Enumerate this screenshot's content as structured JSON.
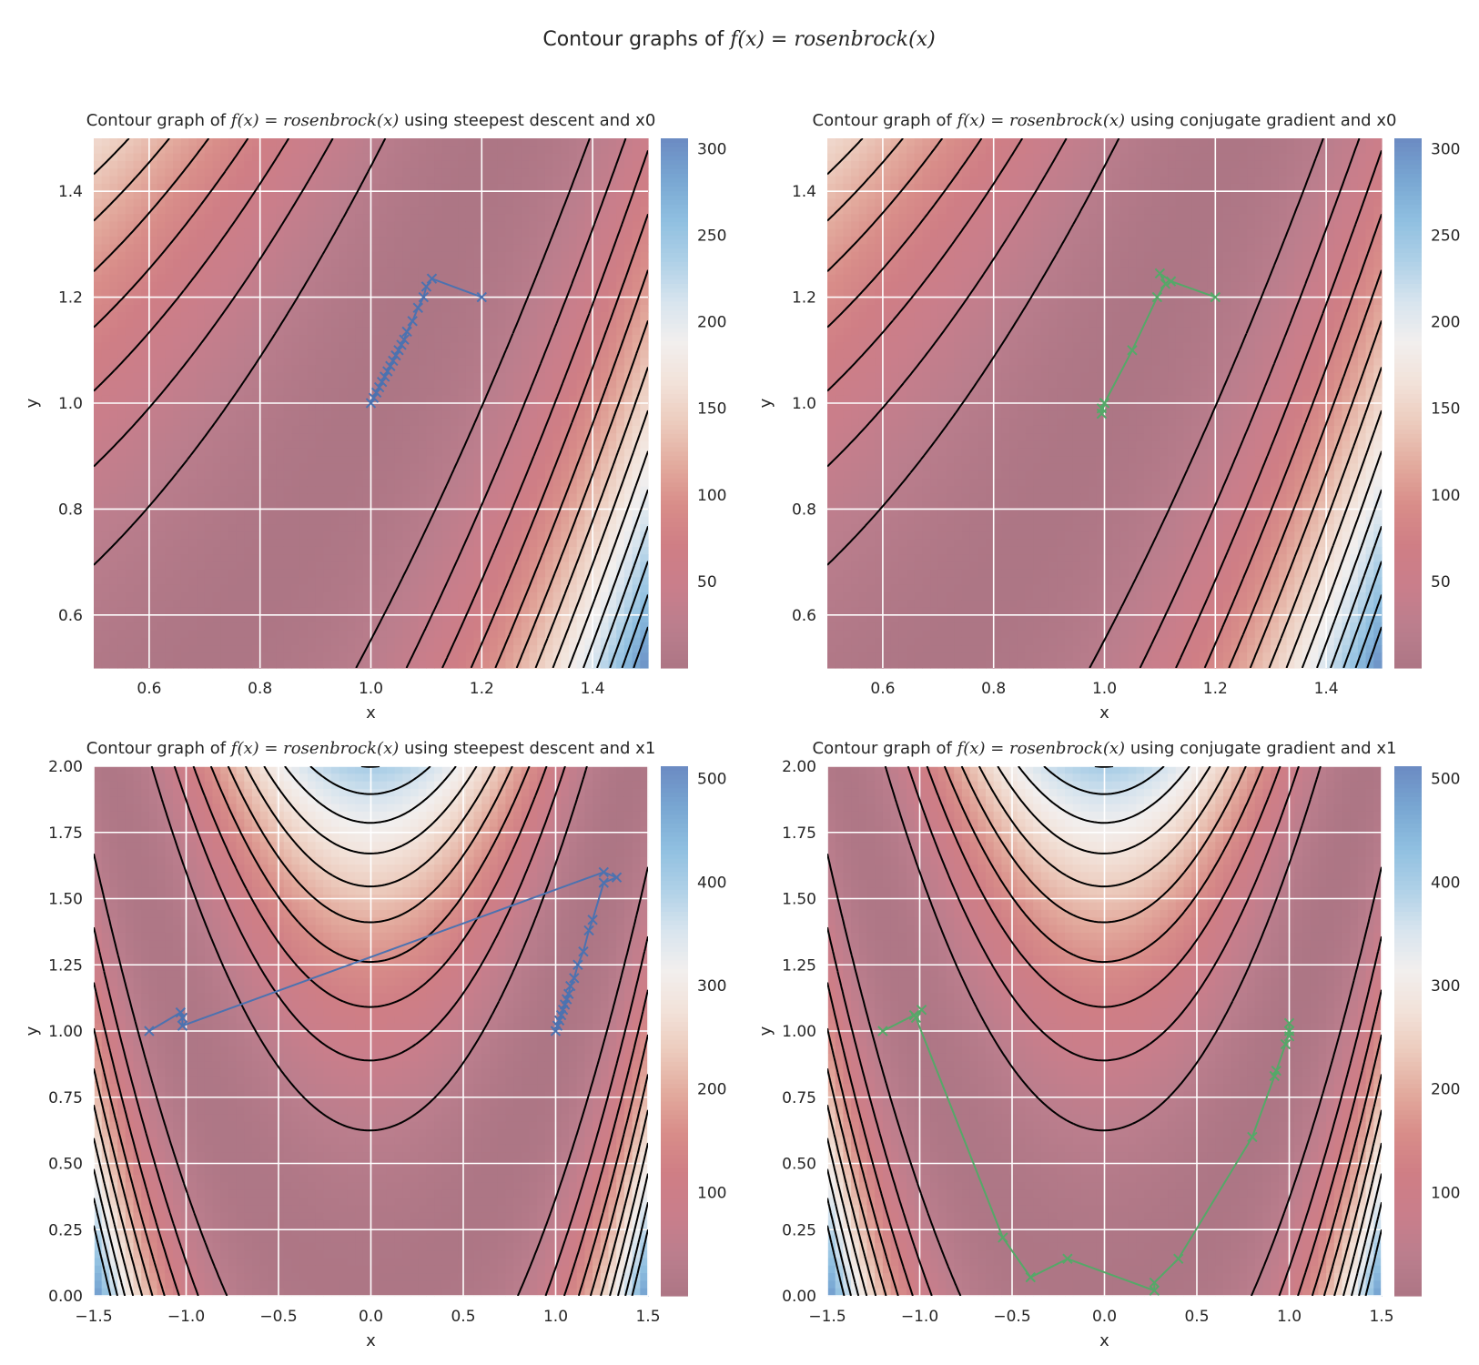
{
  "figure": {
    "suptitle_prefix": "Contour graphs of ",
    "suptitle_math": "f(x) = rosenbrock(x)"
  },
  "colors": {
    "colormap": [
      "#f2efee",
      "#f2e2d9",
      "#eccbbd",
      "#e3ab9e",
      "#d88d89",
      "#cf7e85",
      "#c97e8b",
      "#bb7e8d",
      "#ad7685"
    ],
    "colormap_high": [
      "#d7e4ee",
      "#aed0e7",
      "#8fbfe0",
      "#78a6d2",
      "#6b8bc2"
    ],
    "contour": "#000000",
    "grid": "#ffffff",
    "path_steepest": "#4c72b0",
    "path_conjugate": "#55a868"
  },
  "chart_data": [
    {
      "type": "contour",
      "title_prefix": "Contour graph of ",
      "title_math": "f(x) = rosenbrock(x)",
      "title_suffix": " using steepest descent and x0",
      "xlabel": "x",
      "ylabel": "y",
      "xlim": [
        0.5,
        1.5
      ],
      "ylim": [
        0.5,
        1.5
      ],
      "xticks": [
        0.6,
        0.8,
        1.0,
        1.2,
        1.4
      ],
      "yticks": [
        0.6,
        0.8,
        1.0,
        1.2,
        1.4
      ],
      "xtick_labels": [
        "0.6",
        "0.8",
        "1.0",
        "1.2",
        "1.4"
      ],
      "ytick_labels": [
        "0.6",
        "0.8",
        "1.0",
        "1.2",
        "1.4"
      ],
      "contour_levels": [
        20,
        40,
        60,
        80,
        100,
        120,
        140,
        160,
        180,
        200,
        220,
        240,
        260,
        280
      ],
      "colorbar": {
        "min": 0,
        "max": 306,
        "ticks": [
          50,
          100,
          150,
          200,
          250,
          300
        ],
        "tick_labels": [
          "50",
          "100",
          "150",
          "200",
          "250",
          "300"
        ]
      },
      "grid": true,
      "path": {
        "method": "steepest descent",
        "color": "#4c72b0",
        "marker": "x",
        "points": [
          [
            1.2,
            1.2
          ],
          [
            1.11,
            1.235
          ],
          [
            1.1,
            1.22
          ],
          [
            1.095,
            1.2
          ],
          [
            1.085,
            1.18
          ],
          [
            1.075,
            1.155
          ],
          [
            1.065,
            1.135
          ],
          [
            1.06,
            1.12
          ],
          [
            1.055,
            1.11
          ],
          [
            1.05,
            1.1
          ],
          [
            1.045,
            1.09
          ],
          [
            1.04,
            1.08
          ],
          [
            1.035,
            1.07
          ],
          [
            1.03,
            1.06
          ],
          [
            1.025,
            1.05
          ],
          [
            1.02,
            1.04
          ],
          [
            1.015,
            1.03
          ],
          [
            1.01,
            1.02
          ],
          [
            1.005,
            1.01
          ],
          [
            1.0,
            1.0
          ]
        ]
      }
    },
    {
      "type": "contour",
      "title_prefix": "Contour graph of ",
      "title_math": "f(x) = rosenbrock(x)",
      "title_suffix": " using conjugate gradient and x0",
      "xlabel": "x",
      "ylabel": "y",
      "xlim": [
        0.5,
        1.5
      ],
      "ylim": [
        0.5,
        1.5
      ],
      "xticks": [
        0.6,
        0.8,
        1.0,
        1.2,
        1.4
      ],
      "yticks": [
        0.6,
        0.8,
        1.0,
        1.2,
        1.4
      ],
      "xtick_labels": [
        "0.6",
        "0.8",
        "1.0",
        "1.2",
        "1.4"
      ],
      "ytick_labels": [
        "0.6",
        "0.8",
        "1.0",
        "1.2",
        "1.4"
      ],
      "contour_levels": [
        20,
        40,
        60,
        80,
        100,
        120,
        140,
        160,
        180,
        200,
        220,
        240,
        260,
        280
      ],
      "colorbar": {
        "min": 0,
        "max": 306,
        "ticks": [
          50,
          100,
          150,
          200,
          250,
          300
        ],
        "tick_labels": [
          "50",
          "100",
          "150",
          "200",
          "250",
          "300"
        ]
      },
      "grid": true,
      "path": {
        "method": "conjugate gradient",
        "color": "#55a868",
        "marker": "x",
        "points": [
          [
            1.2,
            1.2
          ],
          [
            1.12,
            1.23
          ],
          [
            1.1,
            1.245
          ],
          [
            1.11,
            1.225
          ],
          [
            1.095,
            1.2
          ],
          [
            1.05,
            1.1
          ],
          [
            1.0,
            1.0
          ],
          [
            0.995,
            0.99
          ],
          [
            0.995,
            0.98
          ],
          [
            1.0,
            1.0
          ]
        ]
      }
    },
    {
      "type": "contour",
      "title_prefix": "Contour graph of ",
      "title_math": "f(x) = rosenbrock(x)",
      "title_suffix": " using steepest descent and x1",
      "xlabel": "x",
      "ylabel": "y",
      "xlim": [
        -1.5,
        1.5
      ],
      "ylim": [
        0.0,
        2.0
      ],
      "xticks": [
        -1.5,
        -1.0,
        -0.5,
        0.0,
        0.5,
        1.0,
        1.5
      ],
      "yticks": [
        0.0,
        0.25,
        0.5,
        0.75,
        1.0,
        1.25,
        1.5,
        1.75,
        2.0
      ],
      "xtick_labels": [
        "−1.5",
        "−1.0",
        "−0.5",
        "0.0",
        "0.5",
        "1.0",
        "1.5"
      ],
      "ytick_labels": [
        "0.00",
        "0.25",
        "0.50",
        "0.75",
        "1.00",
        "1.25",
        "1.50",
        "1.75",
        "2.00"
      ],
      "contour_levels": [
        40,
        80,
        120,
        160,
        200,
        240,
        280,
        320,
        360,
        400
      ],
      "colorbar": {
        "min": 0,
        "max": 512,
        "ticks": [
          100,
          200,
          300,
          400,
          500
        ],
        "tick_labels": [
          "100",
          "200",
          "300",
          "400",
          "500"
        ]
      },
      "grid": true,
      "path": {
        "method": "steepest descent",
        "color": "#4c72b0",
        "marker": "x",
        "points": [
          [
            -1.2,
            1.0
          ],
          [
            -1.03,
            1.07
          ],
          [
            -1.02,
            1.05
          ],
          [
            -1.02,
            1.02
          ],
          [
            1.26,
            1.6
          ],
          [
            1.33,
            1.58
          ],
          [
            1.26,
            1.56
          ],
          [
            1.2,
            1.42
          ],
          [
            1.18,
            1.38
          ],
          [
            1.15,
            1.3
          ],
          [
            1.12,
            1.25
          ],
          [
            1.1,
            1.2
          ],
          [
            1.08,
            1.17
          ],
          [
            1.07,
            1.14
          ],
          [
            1.06,
            1.12
          ],
          [
            1.05,
            1.1
          ],
          [
            1.04,
            1.08
          ],
          [
            1.03,
            1.06
          ],
          [
            1.02,
            1.04
          ],
          [
            1.01,
            1.02
          ],
          [
            1.0,
            1.0
          ]
        ]
      }
    },
    {
      "type": "contour",
      "title_prefix": "Contour graph of ",
      "title_math": "f(x) = rosenbrock(x)",
      "title_suffix": " using conjugate gradient and x1",
      "xlabel": "x",
      "ylabel": "y",
      "xlim": [
        -1.5,
        1.5
      ],
      "ylim": [
        0.0,
        2.0
      ],
      "xticks": [
        -1.5,
        -1.0,
        -0.5,
        0.0,
        0.5,
        1.0,
        1.5
      ],
      "yticks": [
        0.0,
        0.25,
        0.5,
        0.75,
        1.0,
        1.25,
        1.5,
        1.75,
        2.0
      ],
      "xtick_labels": [
        "−1.5",
        "−1.0",
        "−0.5",
        "0.0",
        "0.5",
        "1.0",
        "1.5"
      ],
      "ytick_labels": [
        "0.00",
        "0.25",
        "0.50",
        "0.75",
        "1.00",
        "1.25",
        "1.50",
        "1.75",
        "2.00"
      ],
      "contour_levels": [
        40,
        80,
        120,
        160,
        200,
        240,
        280,
        320,
        360,
        400
      ],
      "colorbar": {
        "min": 0,
        "max": 512,
        "ticks": [
          100,
          200,
          300,
          400,
          500
        ],
        "tick_labels": [
          "100",
          "200",
          "300",
          "400",
          "500"
        ]
      },
      "grid": true,
      "path": {
        "method": "conjugate gradient",
        "color": "#55a868",
        "marker": "x",
        "points": [
          [
            -1.2,
            1.0
          ],
          [
            -1.03,
            1.06
          ],
          [
            -0.99,
            1.08
          ],
          [
            -1.02,
            1.05
          ],
          [
            -0.55,
            0.22
          ],
          [
            -0.4,
            0.07
          ],
          [
            -0.2,
            0.14
          ],
          [
            0.27,
            0.02
          ],
          [
            0.27,
            0.05
          ],
          [
            0.4,
            0.14
          ],
          [
            0.8,
            0.6
          ],
          [
            0.92,
            0.83
          ],
          [
            0.93,
            0.85
          ],
          [
            0.98,
            0.95
          ],
          [
            1.0,
            1.0
          ],
          [
            1.0,
            1.03
          ],
          [
            1.0,
            0.98
          ],
          [
            1.0,
            1.0
          ]
        ]
      }
    }
  ]
}
